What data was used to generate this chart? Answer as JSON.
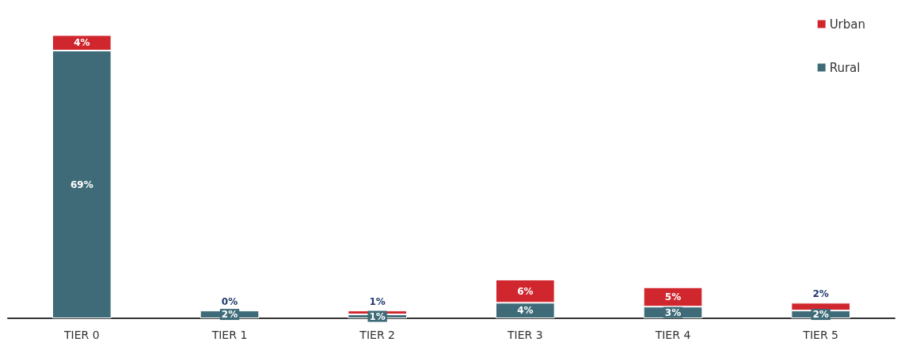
{
  "chart_data": {
    "type": "bar",
    "stacked": true,
    "categories": [
      "TIER 0",
      "TIER 1",
      "TIER 2",
      "TIER 3",
      "TIER 4",
      "TIER 5"
    ],
    "series": [
      {
        "name": "Rural",
        "color": "#3e6b77",
        "values": [
          69,
          2,
          1,
          4,
          3,
          2
        ],
        "value_labels": [
          "69%",
          "2%",
          "1%",
          "4%",
          "3%",
          "2%"
        ]
      },
      {
        "name": "Urban",
        "color": "#d0262e",
        "values": [
          4,
          0,
          1,
          6,
          5,
          2
        ],
        "value_labels": [
          "4%",
          "0%",
          "1%",
          "6%",
          "5%",
          "2%"
        ]
      }
    ],
    "legend": "top right"
  }
}
